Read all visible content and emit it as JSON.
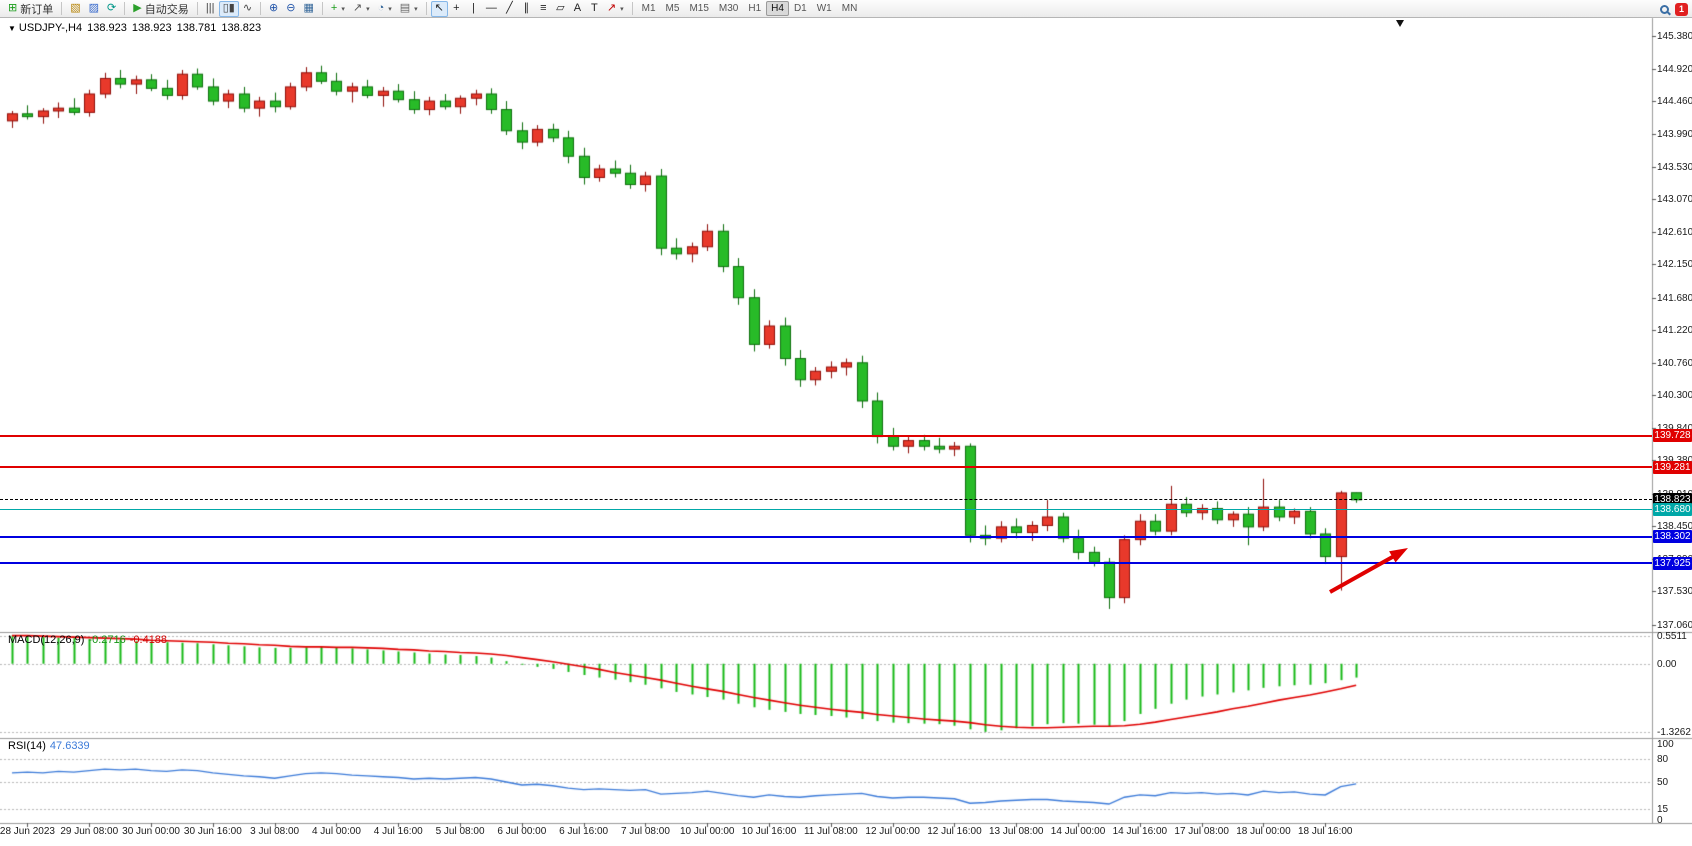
{
  "toolbar": {
    "notification_count": "1",
    "timeframes": [
      "M1",
      "M5",
      "M15",
      "M30",
      "H1",
      "H4",
      "D1",
      "W1",
      "MN"
    ],
    "active_timeframe": "H4",
    "groups": [
      [
        {
          "name": "new-order",
          "glyph": "⊞",
          "color": "#1a9c1a",
          "label": "新订单"
        }
      ],
      [
        {
          "name": "new-chart",
          "glyph": "▧",
          "color": "#b8860b"
        },
        {
          "name": "profiles",
          "glyph": "▨",
          "color": "#3366cc"
        },
        {
          "name": "refresh",
          "glyph": "⟳",
          "color": "#009688"
        }
      ],
      [
        {
          "name": "autotrade",
          "glyph": "▶",
          "color": "#2ca02c",
          "label": "自动交易"
        }
      ],
      [
        {
          "name": "bar-chart",
          "glyph": "|||",
          "color": "#444"
        },
        {
          "name": "candlestick-chart",
          "glyph": "▯▮",
          "color": "#444",
          "active": true
        },
        {
          "name": "line-chart",
          "glyph": "∿",
          "color": "#444"
        }
      ],
      [
        {
          "name": "zoom-in",
          "glyph": "⊕",
          "color": "#2255aa"
        },
        {
          "name": "zoom-out",
          "glyph": "⊖",
          "color": "#2255aa"
        },
        {
          "name": "tile-windows",
          "glyph": "▦",
          "color": "#336699"
        }
      ],
      [
        {
          "name": "indicators",
          "glyph": "+",
          "color": "#1a9c1a",
          "caret": true
        },
        {
          "name": "objects",
          "glyph": "↗",
          "color": "#555",
          "caret": true
        },
        {
          "name": "periods",
          "glyph": "◔",
          "color": "#336699",
          "caret": true
        },
        {
          "name": "templates",
          "glyph": "▤",
          "color": "#666",
          "caret": true
        }
      ],
      [
        {
          "name": "cursor",
          "glyph": "↖",
          "color": "#222",
          "active": true
        },
        {
          "name": "crosshair",
          "glyph": "+",
          "color": "#222"
        },
        {
          "name": "vertical-line",
          "glyph": "|",
          "color": "#222"
        },
        {
          "name": "horizontal-line",
          "glyph": "—",
          "color": "#222"
        },
        {
          "name": "trendline",
          "glyph": "╱",
          "color": "#222"
        },
        {
          "name": "channel",
          "glyph": "∥",
          "color": "#222"
        },
        {
          "name": "fibonacci",
          "glyph": "≡",
          "color": "#222"
        },
        {
          "name": "shapes",
          "glyph": "▱",
          "color": "#222"
        },
        {
          "name": "text",
          "glyph": "A",
          "color": "#222"
        },
        {
          "name": "text-label",
          "glyph": "T",
          "color": "#222"
        },
        {
          "name": "arrows",
          "glyph": "↗",
          "color": "#c00000",
          "caret": true
        }
      ]
    ]
  },
  "chart": {
    "title": {
      "symbol": "USDJPY-,H4",
      "open": "138.923",
      "high": "138.923",
      "low": "138.781",
      "close": "138.823"
    },
    "price_axis": [
      "145.380",
      "144.920",
      "144.460",
      "143.990",
      "143.530",
      "143.070",
      "142.610",
      "142.150",
      "141.680",
      "141.220",
      "140.760",
      "140.300",
      "139.840",
      "139.380",
      "138.910",
      "138.450",
      "137.990",
      "137.530",
      "137.060"
    ],
    "levels": [
      {
        "price": 139.728,
        "label": "139.728",
        "color": "#e00000",
        "weight": 2,
        "style": "solid"
      },
      {
        "price": 139.281,
        "label": "139.281",
        "color": "#e00000",
        "weight": 2,
        "style": "solid"
      },
      {
        "price": 138.823,
        "label": "138.823",
        "color": "#000000",
        "weight": 1,
        "style": "dash"
      },
      {
        "price": 138.68,
        "label": "138.680",
        "color": "#00a8a8",
        "weight": 1,
        "style": "solid"
      },
      {
        "price": 138.302,
        "label": "138.302",
        "color": "#0000e0",
        "weight": 2,
        "style": "solid"
      },
      {
        "price": 137.925,
        "label": "137.925",
        "color": "#0000e0",
        "weight": 2,
        "style": "solid"
      }
    ],
    "dates": [
      "28 Jun 2023",
      "29 Jun 08:00",
      "30 Jun 00:00",
      "30 Jun 16:00",
      "3 Jul 08:00",
      "4 Jul 00:00",
      "4 Jul 16:00",
      "5 Jul 08:00",
      "6 Jul 00:00",
      "6 Jul 16:00",
      "7 Jul 08:00",
      "10 Jul 00:00",
      "10 Jul 16:00",
      "11 Jul 08:00",
      "12 Jul 00:00",
      "12 Jul 16:00",
      "13 Jul 08:00",
      "14 Jul 00:00",
      "14 Jul 16:00",
      "17 Jul 08:00",
      "18 Jul 00:00",
      "18 Jul 16:00"
    ]
  },
  "macd": {
    "label": "MACD(12,26,9)",
    "value_main": "-0.2716",
    "value_signal": "-0.4188",
    "scale": [
      "0.5511",
      "0.00",
      "-1.3262"
    ]
  },
  "rsi": {
    "label": "RSI(14)",
    "value": "47.6339",
    "scale": [
      "100",
      "80",
      "50",
      "15",
      "0"
    ]
  },
  "chart_data": {
    "type": "candlestick",
    "symbol": "USDJPY-",
    "timeframe": "H4",
    "title": "USDJPY-,H4",
    "ylim": [
      137.06,
      145.38
    ],
    "colors": {
      "bull_fill": "#e8392b",
      "bull_stroke": "#8f0d08",
      "bear_fill": "#28bb28",
      "bear_stroke": "#0c6e0c",
      "macd_hist": "#16b816",
      "macd_signal": "#e00000",
      "rsi_line": "#3c7bd9"
    },
    "candles": [
      [
        144.18,
        144.32,
        144.08,
        144.28
      ],
      [
        144.28,
        144.4,
        144.2,
        144.24
      ],
      [
        144.24,
        144.36,
        144.14,
        144.32
      ],
      [
        144.32,
        144.44,
        144.22,
        144.36
      ],
      [
        144.36,
        144.5,
        144.26,
        144.3
      ],
      [
        144.3,
        144.62,
        144.24,
        144.56
      ],
      [
        144.56,
        144.86,
        144.5,
        144.78
      ],
      [
        144.78,
        144.9,
        144.64,
        144.7
      ],
      [
        144.7,
        144.82,
        144.56,
        144.76
      ],
      [
        144.76,
        144.84,
        144.6,
        144.64
      ],
      [
        144.64,
        144.76,
        144.48,
        144.54
      ],
      [
        144.54,
        144.9,
        144.48,
        144.84
      ],
      [
        144.84,
        144.92,
        144.62,
        144.66
      ],
      [
        144.66,
        144.78,
        144.4,
        144.46
      ],
      [
        144.46,
        144.62,
        144.36,
        144.56
      ],
      [
        144.56,
        144.66,
        144.3,
        144.36
      ],
      [
        144.36,
        144.52,
        144.24,
        144.46
      ],
      [
        144.46,
        144.58,
        144.3,
        144.38
      ],
      [
        144.38,
        144.72,
        144.34,
        144.66
      ],
      [
        144.66,
        144.94,
        144.6,
        144.86
      ],
      [
        144.86,
        144.96,
        144.7,
        144.74
      ],
      [
        144.74,
        144.86,
        144.54,
        144.6
      ],
      [
        144.6,
        144.72,
        144.44,
        144.66
      ],
      [
        144.66,
        144.76,
        144.5,
        144.54
      ],
      [
        144.54,
        144.66,
        144.38,
        144.6
      ],
      [
        144.6,
        144.7,
        144.44,
        144.48
      ],
      [
        144.48,
        144.6,
        144.28,
        144.34
      ],
      [
        144.34,
        144.52,
        144.26,
        144.46
      ],
      [
        144.46,
        144.56,
        144.34,
        144.38
      ],
      [
        144.38,
        144.54,
        144.28,
        144.5
      ],
      [
        144.5,
        144.62,
        144.4,
        144.56
      ],
      [
        144.56,
        144.64,
        144.28,
        144.34
      ],
      [
        144.34,
        144.46,
        143.98,
        144.04
      ],
      [
        144.04,
        144.16,
        143.78,
        143.88
      ],
      [
        143.88,
        144.12,
        143.82,
        144.06
      ],
      [
        144.06,
        144.14,
        143.88,
        143.94
      ],
      [
        143.94,
        144.04,
        143.58,
        143.68
      ],
      [
        143.68,
        143.8,
        143.28,
        143.38
      ],
      [
        143.38,
        143.56,
        143.32,
        143.5
      ],
      [
        143.5,
        143.62,
        143.38,
        143.44
      ],
      [
        143.44,
        143.56,
        143.22,
        143.28
      ],
      [
        143.28,
        143.46,
        143.18,
        143.4
      ],
      [
        143.4,
        143.5,
        142.28,
        142.38
      ],
      [
        142.38,
        142.52,
        142.22,
        142.3
      ],
      [
        142.3,
        142.46,
        142.18,
        142.4
      ],
      [
        142.4,
        142.72,
        142.34,
        142.62
      ],
      [
        142.62,
        142.72,
        142.04,
        142.12
      ],
      [
        142.12,
        142.24,
        141.58,
        141.68
      ],
      [
        141.68,
        141.8,
        140.92,
        141.02
      ],
      [
        141.02,
        141.36,
        140.96,
        141.28
      ],
      [
        141.28,
        141.4,
        140.72,
        140.82
      ],
      [
        140.82,
        140.94,
        140.42,
        140.52
      ],
      [
        140.52,
        140.7,
        140.44,
        140.64
      ],
      [
        140.64,
        140.78,
        140.54,
        140.7
      ],
      [
        140.7,
        140.82,
        140.58,
        140.76
      ],
      [
        140.76,
        140.86,
        140.12,
        140.22
      ],
      [
        140.22,
        140.34,
        139.62,
        139.72
      ],
      [
        139.72,
        139.84,
        139.52,
        139.58
      ],
      [
        139.58,
        139.72,
        139.48,
        139.66
      ],
      [
        139.66,
        139.74,
        139.52,
        139.58
      ],
      [
        139.58,
        139.7,
        139.48,
        139.54
      ],
      [
        139.54,
        139.64,
        139.44,
        139.58
      ],
      [
        139.58,
        139.62,
        138.22,
        138.32
      ],
      [
        138.32,
        138.46,
        138.18,
        138.28
      ],
      [
        138.28,
        138.52,
        138.22,
        138.44
      ],
      [
        138.44,
        138.56,
        138.28,
        138.36
      ],
      [
        138.36,
        138.52,
        138.24,
        138.46
      ],
      [
        138.46,
        138.82,
        138.38,
        138.58
      ],
      [
        138.58,
        138.64,
        138.22,
        138.28
      ],
      [
        138.28,
        138.4,
        137.98,
        138.08
      ],
      [
        138.08,
        138.16,
        137.88,
        137.94
      ],
      [
        137.94,
        138.0,
        137.28,
        137.44
      ],
      [
        137.44,
        138.32,
        137.36,
        138.26
      ],
      [
        138.26,
        138.62,
        138.18,
        138.52
      ],
      [
        138.52,
        138.62,
        138.32,
        138.38
      ],
      [
        138.38,
        139.02,
        138.32,
        138.76
      ],
      [
        138.76,
        138.86,
        138.58,
        138.64
      ],
      [
        138.64,
        138.76,
        138.54,
        138.7
      ],
      [
        138.7,
        138.8,
        138.48,
        138.54
      ],
      [
        138.54,
        138.66,
        138.44,
        138.62
      ],
      [
        138.62,
        138.72,
        138.18,
        138.44
      ],
      [
        138.44,
        139.12,
        138.38,
        138.72
      ],
      [
        138.72,
        138.82,
        138.52,
        138.58
      ],
      [
        138.58,
        138.7,
        138.48,
        138.66
      ],
      [
        138.66,
        138.72,
        138.28,
        138.34
      ],
      [
        138.34,
        138.42,
        137.92,
        138.02
      ],
      [
        138.02,
        138.95,
        137.54,
        138.92
      ],
      [
        138.923,
        138.923,
        138.781,
        138.823
      ]
    ],
    "indicators": [
      {
        "name": "MACD(12,26,9)",
        "type": "histogram+line",
        "ylim": [
          -1.45,
          0.62
        ],
        "current_main": -0.2716,
        "current_signal": -0.4188,
        "histogram": [
          0.55,
          0.54,
          0.52,
          0.51,
          0.5,
          0.48,
          0.47,
          0.46,
          0.44,
          0.43,
          0.42,
          0.41,
          0.4,
          0.38,
          0.36,
          0.34,
          0.32,
          0.31,
          0.31,
          0.32,
          0.33,
          0.32,
          0.3,
          0.28,
          0.26,
          0.24,
          0.22,
          0.2,
          0.18,
          0.17,
          0.15,
          0.12,
          0.05,
          -0.02,
          -0.06,
          -0.1,
          -0.16,
          -0.22,
          -0.27,
          -0.31,
          -0.36,
          -0.41,
          -0.48,
          -0.55,
          -0.6,
          -0.65,
          -0.7,
          -0.78,
          -0.85,
          -0.9,
          -0.94,
          -0.98,
          -1.0,
          -1.02,
          -1.05,
          -1.08,
          -1.12,
          -1.15,
          -1.16,
          -1.17,
          -1.18,
          -1.21,
          -1.28,
          -1.33,
          -1.3,
          -1.26,
          -1.22,
          -1.18,
          -1.16,
          -1.17,
          -1.19,
          -1.23,
          -1.12,
          -0.98,
          -0.88,
          -0.78,
          -0.7,
          -0.64,
          -0.6,
          -0.56,
          -0.52,
          -0.47,
          -0.44,
          -0.42,
          -0.41,
          -0.38,
          -0.32,
          -0.27
        ],
        "signal": [
          0.55,
          0.55,
          0.54,
          0.53,
          0.52,
          0.51,
          0.5,
          0.49,
          0.48,
          0.46,
          0.45,
          0.44,
          0.43,
          0.42,
          0.4,
          0.39,
          0.37,
          0.36,
          0.34,
          0.33,
          0.33,
          0.32,
          0.32,
          0.31,
          0.3,
          0.28,
          0.27,
          0.25,
          0.24,
          0.22,
          0.21,
          0.19,
          0.16,
          0.12,
          0.08,
          0.04,
          -0.01,
          -0.06,
          -0.11,
          -0.17,
          -0.22,
          -0.27,
          -0.32,
          -0.38,
          -0.44,
          -0.49,
          -0.54,
          -0.6,
          -0.66,
          -0.71,
          -0.76,
          -0.81,
          -0.85,
          -0.89,
          -0.92,
          -0.95,
          -0.99,
          -1.02,
          -1.05,
          -1.08,
          -1.1,
          -1.12,
          -1.15,
          -1.19,
          -1.22,
          -1.24,
          -1.25,
          -1.25,
          -1.24,
          -1.23,
          -1.22,
          -1.22,
          -1.21,
          -1.18,
          -1.14,
          -1.09,
          -1.04,
          -0.99,
          -0.94,
          -0.88,
          -0.83,
          -0.77,
          -0.71,
          -0.66,
          -0.61,
          -0.55,
          -0.49,
          -0.42
        ]
      },
      {
        "name": "RSI(14)",
        "type": "line",
        "ylim": [
          0,
          100
        ],
        "levels": [
          80,
          50,
          15
        ],
        "current": 47.6339,
        "values": [
          62,
          63,
          62,
          64,
          63,
          65,
          67,
          66,
          67,
          65,
          64,
          66,
          65,
          62,
          60,
          58,
          57,
          55,
          58,
          61,
          62,
          61,
          59,
          58,
          57,
          56,
          54,
          55,
          54,
          55,
          56,
          54,
          50,
          46,
          47,
          45,
          42,
          40,
          41,
          40,
          39,
          40,
          34,
          35,
          36,
          38,
          35,
          32,
          30,
          33,
          31,
          30,
          32,
          33,
          34,
          35,
          31,
          29,
          30,
          30,
          29,
          28,
          22,
          23,
          25,
          26,
          27,
          27,
          25,
          24,
          23,
          21,
          30,
          33,
          32,
          36,
          35,
          36,
          34,
          35,
          33,
          38,
          36,
          37,
          34,
          33,
          44,
          47.6
        ]
      }
    ]
  }
}
